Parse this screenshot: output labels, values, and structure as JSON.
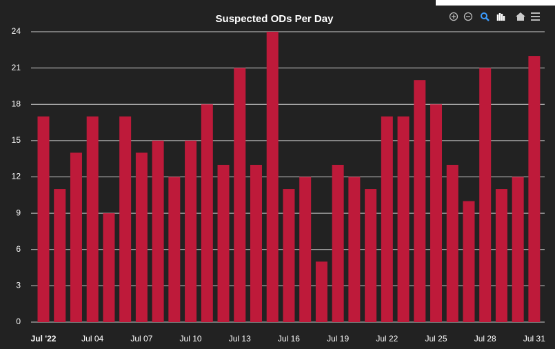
{
  "chart_data": {
    "type": "bar",
    "title": "Suspected ODs Per Day",
    "categories": [
      "Jul '22",
      null,
      null,
      "Jul 04",
      null,
      null,
      "Jul 07",
      null,
      null,
      "Jul 10",
      null,
      null,
      "Jul 13",
      null,
      null,
      "Jul 16",
      null,
      null,
      "Jul 19",
      null,
      null,
      "Jul 22",
      null,
      null,
      "Jul 25",
      null,
      null,
      "Jul 28",
      null,
      null,
      "Jul 31"
    ],
    "values": [
      17,
      11,
      14,
      17,
      9,
      17,
      14,
      15,
      12,
      15,
      18,
      13,
      21,
      13,
      24,
      11,
      12,
      5,
      13,
      12,
      11,
      17,
      17,
      20,
      18,
      13,
      10,
      21,
      11,
      12,
      22
    ],
    "color": "#be1a3a",
    "ylim": [
      0,
      24
    ],
    "yticks": [
      0,
      3,
      6,
      9,
      12,
      15,
      18,
      21,
      24
    ],
    "grid": true
  }
}
